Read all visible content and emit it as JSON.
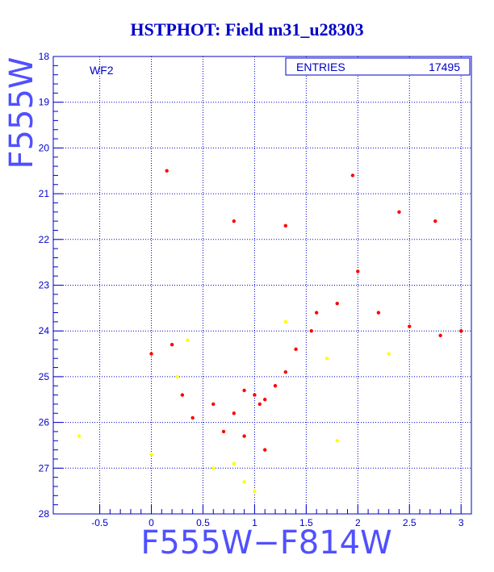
{
  "chart_data": {
    "type": "scatter",
    "title": "HSTPHOT: Field m31_u28303",
    "xlabel": "F555W−F814W",
    "ylabel": "F555W",
    "panel_label": "WF2",
    "stats": {
      "label": "ENTRIES",
      "value": "17495"
    },
    "xlim": [
      -0.95,
      3.1
    ],
    "ylim": [
      28,
      18
    ],
    "y_inverted": true,
    "grid": true,
    "x_ticks": [
      "-0.5",
      "0",
      "0.5",
      "1",
      "1.5",
      "2",
      "2.5",
      "3"
    ],
    "y_ticks": [
      "18",
      "19",
      "20",
      "21",
      "22",
      "23",
      "24",
      "25",
      "26",
      "27",
      "28"
    ],
    "series": [
      {
        "color": "#ff0000",
        "points": [
          [
            1.0,
            25.4
          ],
          [
            1.1,
            25.5
          ],
          [
            0.9,
            25.3
          ],
          [
            1.05,
            25.6
          ],
          [
            1.2,
            25.2
          ],
          [
            0.8,
            25.8
          ],
          [
            1.3,
            24.9
          ],
          [
            1.4,
            24.4
          ],
          [
            1.55,
            24.0
          ],
          [
            1.6,
            23.6
          ],
          [
            1.8,
            23.4
          ],
          [
            2.2,
            23.6
          ],
          [
            2.5,
            23.9
          ],
          [
            2.8,
            24.1
          ],
          [
            3.0,
            24.0
          ],
          [
            0.2,
            24.3
          ],
          [
            0.0,
            24.5
          ],
          [
            0.3,
            25.4
          ],
          [
            0.4,
            25.9
          ],
          [
            0.9,
            26.3
          ],
          [
            1.1,
            26.6
          ],
          [
            0.7,
            26.2
          ],
          [
            0.6,
            25.6
          ],
          [
            0.15,
            20.5
          ],
          [
            1.95,
            20.6
          ],
          [
            2.4,
            21.4
          ],
          [
            2.75,
            21.6
          ],
          [
            0.8,
            21.6
          ],
          [
            1.3,
            21.7
          ],
          [
            2.0,
            22.7
          ]
        ]
      },
      {
        "color": "#ffff00",
        "points": [
          [
            0.8,
            26.9
          ],
          [
            0.9,
            27.3
          ],
          [
            0.6,
            27.0
          ],
          [
            1.0,
            27.5
          ],
          [
            0.35,
            24.2
          ],
          [
            0.25,
            25.0
          ],
          [
            1.3,
            23.8
          ],
          [
            1.7,
            24.6
          ],
          [
            2.3,
            24.5
          ],
          [
            1.8,
            26.4
          ],
          [
            -0.7,
            26.3
          ],
          [
            0.0,
            26.7
          ]
        ]
      }
    ]
  }
}
